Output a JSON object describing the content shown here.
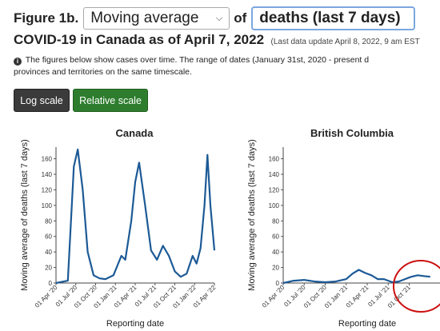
{
  "header": {
    "figure_label": "Figure 1b.",
    "measure_select": "Moving average",
    "of_label": "of",
    "metric_select": "deaths (last 7 days)"
  },
  "subtitle": {
    "main": "COVID-19 in Canada as of April 7, 2022",
    "update": "(Last data update April 8, 2022, 9 am EST"
  },
  "info": {
    "line1": "The figures below show cases over time. The range of dates (January 31st, 2020 - present d",
    "line2": "provinces and territories on the same timescale."
  },
  "buttons": {
    "log_scale": "Log scale",
    "relative_scale": "Relative scale"
  },
  "colors": {
    "line": "#1c5a96",
    "relative_button": "#2e7d2e",
    "log_button": "#3b3b3b",
    "annotation": "#cc1111"
  },
  "chart_data": [
    {
      "type": "line",
      "title": "Canada",
      "ylabel": "Moving average of deaths (last 7 days)",
      "xlabel": "Reporting date",
      "ylim": [
        0,
        175
      ],
      "yticks": [
        0,
        20,
        40,
        60,
        80,
        100,
        120,
        140,
        160
      ],
      "xticks": [
        "01 Apr '20",
        "01 Jul '20",
        "01 Oct '20",
        "01 Jan '21",
        "01 Apr '21",
        "01 Jul '21",
        "01 Oct '21",
        "01 Jan '22",
        "01 Apr '22"
      ],
      "x": [
        0,
        0.6,
        0.9,
        1.1,
        1.35,
        1.6,
        1.9,
        2.2,
        2.5,
        2.9,
        3.3,
        3.5,
        3.8,
        4.0,
        4.2,
        4.5,
        4.8,
        5.1,
        5.4,
        5.7,
        6.0,
        6.3,
        6.6,
        6.9,
        7.1,
        7.3,
        7.5,
        7.65,
        7.8,
        8.0
      ],
      "y": [
        0,
        3,
        150,
        172,
        120,
        40,
        10,
        6,
        5,
        10,
        35,
        30,
        80,
        130,
        155,
        100,
        42,
        30,
        48,
        35,
        15,
        8,
        12,
        35,
        25,
        45,
        100,
        165,
        100,
        42
      ],
      "series": [
        {
          "values": "y"
        }
      ]
    },
    {
      "type": "line",
      "title": "British Columbia",
      "ylabel": "Moving average of deaths (last 7 days)",
      "xlabel": "Reporting date",
      "ylim": [
        0,
        175
      ],
      "yticks": [
        0,
        20,
        40,
        60,
        80,
        100,
        120,
        140,
        160
      ],
      "xticks": [
        "01 Apr '20",
        "01 Jul '20",
        "01 Oct '20",
        "01 Jan '21",
        "01 Apr '21",
        "01 Jul '21",
        "01 Oct '21"
      ],
      "x": [
        0,
        0.5,
        1.0,
        1.5,
        2.0,
        2.5,
        3.0,
        3.3,
        3.6,
        3.9,
        4.2,
        4.5,
        4.8,
        5.0,
        5.2,
        5.5,
        5.8,
        6.1,
        6.4,
        6.7,
        7.0
      ],
      "y": [
        0,
        3,
        4,
        2,
        1,
        2,
        5,
        12,
        17,
        13,
        10,
        5,
        5,
        3,
        1,
        2,
        5,
        8,
        10,
        9,
        8
      ]
    }
  ]
}
